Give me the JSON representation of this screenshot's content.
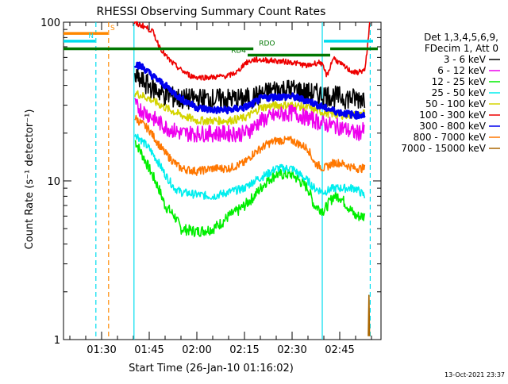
{
  "chart_data": {
    "type": "line",
    "title": "RHESSI Observing Summary Count Rates",
    "xlabel": "Start Time (26-Jan-10 01:16:02)",
    "ylabel": "Count Rate (s⁻¹ detector⁻¹)",
    "y_scale": "log",
    "ylim": [
      1,
      100
    ],
    "xlim_minutes": [
      78,
      178
    ],
    "x_ticks": [
      {
        "t": 90,
        "label": "01:30"
      },
      {
        "t": 105,
        "label": "01:45"
      },
      {
        "t": 120,
        "label": "02:00"
      },
      {
        "t": 135,
        "label": "02:15"
      },
      {
        "t": 150,
        "label": "02:30"
      },
      {
        "t": 165,
        "label": "02:45"
      }
    ],
    "y_ticks": [
      {
        "v": 1,
        "label": "1"
      },
      {
        "v": 10,
        "label": "10"
      },
      {
        "v": 100,
        "label": "100"
      }
    ],
    "legend": {
      "header": [
        "Det 1,3,4,5,6,9,",
        "FDecim 1, Att 0"
      ],
      "position": "right"
    },
    "series": [
      {
        "name": "3 - 6 keV",
        "color": "#000000",
        "noise": 0.16,
        "points": [
          [
            100.5,
            45
          ],
          [
            105,
            40
          ],
          [
            110,
            35
          ],
          [
            115,
            33
          ],
          [
            120,
            33
          ],
          [
            125,
            33
          ],
          [
            130,
            33
          ],
          [
            135,
            33
          ],
          [
            138,
            34
          ],
          [
            140,
            35
          ],
          [
            145,
            38
          ],
          [
            150,
            38
          ],
          [
            155,
            36
          ],
          [
            160,
            35
          ],
          [
            165,
            34
          ],
          [
            170,
            33
          ],
          [
            173,
            34
          ]
        ]
      },
      {
        "name": "6 - 12 keV",
        "color": "#ee00ee",
        "noise": 0.12,
        "points": [
          [
            100.5,
            30
          ],
          [
            105,
            26
          ],
          [
            110,
            22
          ],
          [
            115,
            20
          ],
          [
            120,
            20
          ],
          [
            125,
            20
          ],
          [
            130,
            20
          ],
          [
            135,
            20
          ],
          [
            138,
            22
          ],
          [
            140,
            24
          ],
          [
            145,
            26
          ],
          [
            150,
            27
          ],
          [
            155,
            25
          ],
          [
            160,
            23
          ],
          [
            165,
            22
          ],
          [
            170,
            20
          ],
          [
            173,
            21
          ]
        ]
      },
      {
        "name": "12 - 25 keV",
        "color": "#00ee00",
        "noise": 0.08,
        "points": [
          [
            100.5,
            18
          ],
          [
            105,
            12
          ],
          [
            108,
            9
          ],
          [
            110,
            7
          ],
          [
            113,
            6
          ],
          [
            115,
            5
          ],
          [
            120,
            4.8
          ],
          [
            125,
            5
          ],
          [
            128,
            5.5
          ],
          [
            130,
            6
          ],
          [
            133,
            6.5
          ],
          [
            135,
            7
          ],
          [
            138,
            8
          ],
          [
            142,
            10
          ],
          [
            145,
            11
          ],
          [
            150,
            11
          ],
          [
            155,
            9
          ],
          [
            157,
            7
          ],
          [
            160,
            6.5
          ],
          [
            163,
            8
          ],
          [
            165,
            8
          ],
          [
            170,
            6
          ],
          [
            173,
            6
          ]
        ]
      },
      {
        "name": "25 - 50 keV",
        "color": "#00eeee",
        "noise": 0.06,
        "points": [
          [
            100.5,
            20
          ],
          [
            105,
            16
          ],
          [
            108,
            13
          ],
          [
            110,
            11
          ],
          [
            113,
            9
          ],
          [
            115,
            8.5
          ],
          [
            120,
            8.2
          ],
          [
            125,
            8
          ],
          [
            130,
            8.5
          ],
          [
            135,
            9
          ],
          [
            138,
            10
          ],
          [
            142,
            11
          ],
          [
            145,
            12
          ],
          [
            150,
            12
          ],
          [
            155,
            10
          ],
          [
            157,
            9
          ],
          [
            160,
            8.5
          ],
          [
            163,
            9
          ],
          [
            165,
            9
          ],
          [
            170,
            9
          ],
          [
            173,
            8
          ]
        ]
      },
      {
        "name": "50 - 100 keV",
        "color": "#d4d400",
        "noise": 0.06,
        "points": [
          [
            100.5,
            36
          ],
          [
            105,
            33
          ],
          [
            110,
            29
          ],
          [
            115,
            26
          ],
          [
            120,
            24
          ],
          [
            125,
            24
          ],
          [
            130,
            24
          ],
          [
            135,
            25
          ],
          [
            138,
            27
          ],
          [
            140,
            29
          ],
          [
            145,
            30
          ],
          [
            150,
            30
          ],
          [
            155,
            29
          ],
          [
            160,
            27
          ],
          [
            165,
            26
          ],
          [
            170,
            26
          ],
          [
            173,
            27
          ]
        ]
      },
      {
        "name": "100 - 300 keV",
        "color": "#ee0000",
        "noise": 0.04,
        "points": [
          [
            100.3,
            98
          ],
          [
            103,
            95
          ],
          [
            106,
            88
          ],
          [
            108,
            72
          ],
          [
            110,
            62
          ],
          [
            112,
            56
          ],
          [
            115,
            50
          ],
          [
            118,
            46
          ],
          [
            120,
            45
          ],
          [
            125,
            45
          ],
          [
            130,
            46
          ],
          [
            133,
            49
          ],
          [
            135,
            55
          ],
          [
            138,
            58
          ],
          [
            140,
            58
          ],
          [
            145,
            57
          ],
          [
            150,
            56
          ],
          [
            155,
            53
          ],
          [
            157,
            55
          ],
          [
            159,
            56
          ],
          [
            161,
            46
          ],
          [
            163,
            60
          ],
          [
            165,
            55
          ],
          [
            168,
            50
          ],
          [
            170,
            48
          ],
          [
            173,
            50
          ],
          [
            174,
            80
          ],
          [
            174.5,
            99
          ]
        ]
      },
      {
        "name": "300 - 800 keV",
        "color": "#0000ee",
        "noise": 0.05,
        "points": [
          [
            100.5,
            55
          ],
          [
            103,
            52
          ],
          [
            106,
            46
          ],
          [
            110,
            40
          ],
          [
            115,
            33
          ],
          [
            120,
            29
          ],
          [
            125,
            28
          ],
          [
            130,
            28
          ],
          [
            135,
            29
          ],
          [
            138,
            31
          ],
          [
            140,
            33
          ],
          [
            145,
            34
          ],
          [
            150,
            34
          ],
          [
            155,
            32
          ],
          [
            160,
            29
          ],
          [
            165,
            27
          ],
          [
            170,
            26
          ],
          [
            173,
            26
          ]
        ]
      },
      {
        "name": "800 - 7000 keV",
        "color": "#ff7700",
        "noise": 0.06,
        "points": [
          [
            100.5,
            25
          ],
          [
            105,
            21
          ],
          [
            108,
            17
          ],
          [
            110,
            15
          ],
          [
            113,
            13
          ],
          [
            115,
            12
          ],
          [
            120,
            11.5
          ],
          [
            125,
            12
          ],
          [
            130,
            12
          ],
          [
            135,
            13
          ],
          [
            138,
            15
          ],
          [
            142,
            17
          ],
          [
            145,
            18
          ],
          [
            150,
            18
          ],
          [
            155,
            16
          ],
          [
            157,
            13
          ],
          [
            160,
            12
          ],
          [
            163,
            13
          ],
          [
            165,
            13
          ],
          [
            170,
            12
          ],
          [
            173,
            12
          ]
        ]
      },
      {
        "name": "7000 - 15000 keV",
        "color": "#aa6600",
        "noise": 0,
        "points": [
          [
            174,
            1.05
          ],
          [
            174.2,
            1.9
          ],
          [
            174.4,
            1.05
          ]
        ]
      }
    ],
    "vlines": [
      {
        "t": 88.2,
        "color": "#00ddee",
        "dash": true
      },
      {
        "t": 92.2,
        "color": "#ff8800",
        "dash": true
      },
      {
        "t": 100.2,
        "color": "#00ddee",
        "dash": false
      },
      {
        "t": 159.5,
        "color": "#00ddee",
        "dash": false
      },
      {
        "t": 174.6,
        "color": "#00ddee",
        "dash": true
      }
    ],
    "bars": [
      {
        "label": "S",
        "color": "#ff8800",
        "y": 85,
        "t0": 78,
        "t1": 92
      },
      {
        "label": "N",
        "color": "#00ddee",
        "y": 76,
        "t0": 78,
        "t1": 88
      },
      {
        "label": "",
        "color": "#00ddee",
        "y": 76,
        "t0": 160,
        "t1": 175.5
      },
      {
        "label": "RDO",
        "color": "#007700",
        "y": 68,
        "t0": 78,
        "t1": 137.8
      },
      {
        "label": "RD4",
        "color": "#007700",
        "y": 62,
        "t0": 136,
        "t1": 162
      },
      {
        "label": "",
        "color": "#007700",
        "y": 68,
        "t0": 162,
        "t1": 177
      }
    ],
    "footer_date": "13-Oct-2021 23:37"
  }
}
